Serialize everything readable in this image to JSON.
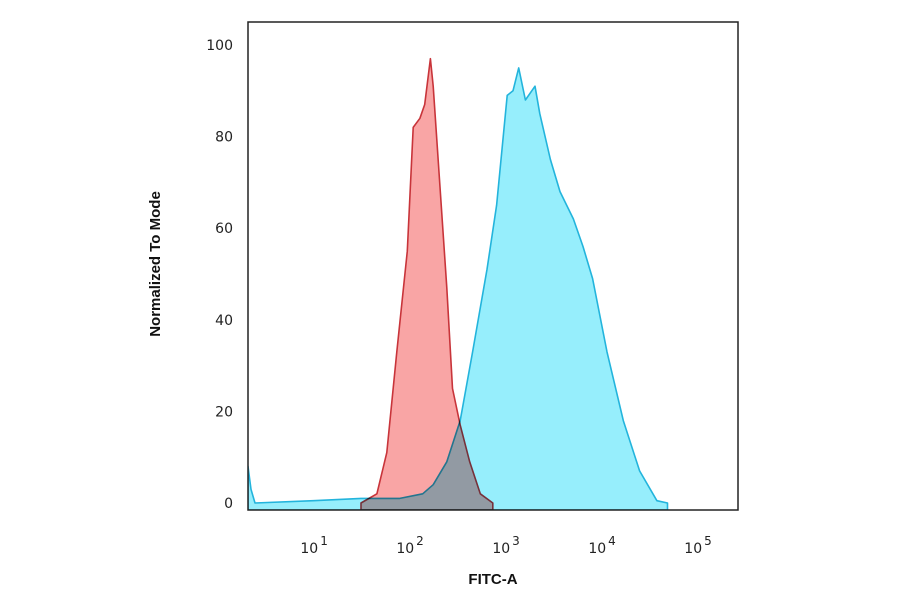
{
  "chart_data": {
    "type": "area",
    "title": "",
    "xlabel": "FITC-A",
    "ylabel": "Normalized To Mode",
    "x_scale": "log",
    "xlim": [
      1.86,
      237000
    ],
    "ylim": [
      0,
      100
    ],
    "x_ticks": [
      {
        "base": "10",
        "exp": "1",
        "value": 10
      },
      {
        "base": "10",
        "exp": "2",
        "value": 100
      },
      {
        "base": "10",
        "exp": "3",
        "value": 1000
      },
      {
        "base": "10",
        "exp": "4",
        "value": 10000
      },
      {
        "base": "10",
        "exp": "5",
        "value": 100000
      }
    ],
    "y_ticks": [
      "0",
      "20",
      "40",
      "60",
      "80",
      "100"
    ],
    "grid": false,
    "legend": "none",
    "series": [
      {
        "color": "#23b4dc",
        "fill": "#96eefc",
        "x": [
          1.86,
          2.0,
          2.2,
          8.9,
          28,
          71,
          123,
          158,
          219,
          302,
          407,
          575,
          724,
          933,
          1072,
          1230,
          1445,
          1820,
          2042,
          2630,
          3311,
          4571,
          5754,
          7244,
          10233,
          15136,
          22387,
          33884,
          43652
        ],
        "y": [
          8,
          3,
          0,
          0.5,
          1,
          1,
          2,
          4,
          9,
          18,
          33,
          51,
          65,
          89,
          90,
          95,
          88,
          91,
          85,
          75,
          68,
          62,
          56,
          49,
          33,
          18,
          7,
          0.5,
          0
        ]
      },
      {
        "color": "#c8343a",
        "fill": "#f9a5a5",
        "x": [
          28,
          41,
          52,
          66,
          85,
          98,
          115,
          129,
          148,
          158,
          186,
          219,
          251,
          302,
          380,
          490,
          660
        ],
        "y": [
          0,
          2,
          11,
          33,
          55,
          82,
          84,
          87,
          97,
          91,
          69,
          47,
          25,
          17,
          9,
          2,
          0
        ]
      }
    ]
  }
}
